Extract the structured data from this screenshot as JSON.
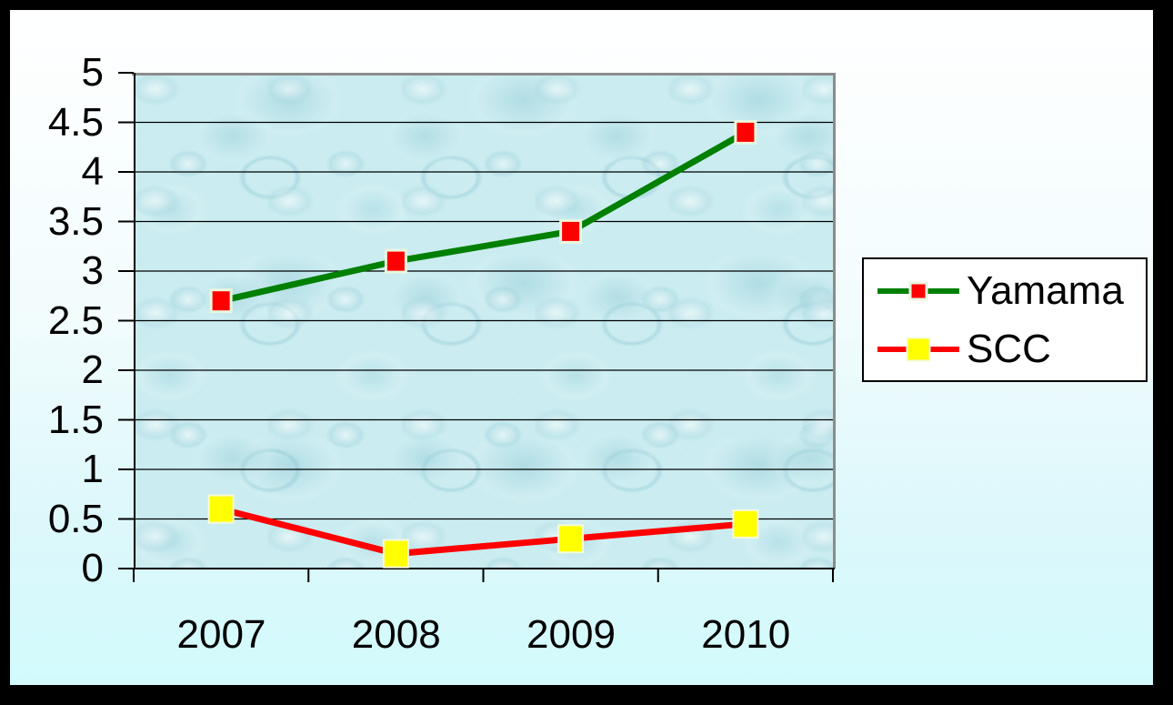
{
  "chart_data": {
    "type": "line",
    "title": "",
    "xlabel": "",
    "ylabel": "",
    "categories": [
      "2007",
      "2008",
      "2009",
      "2010"
    ],
    "series": [
      {
        "name": "Yamama",
        "values": [
          2.7,
          3.1,
          3.4,
          4.4
        ],
        "line_color": "#008000",
        "marker_color": "#ff0000",
        "marker_outline": "#e9f7de",
        "marker_shape": "square"
      },
      {
        "name": "SCC",
        "values": [
          0.6,
          0.15,
          0.3,
          0.45
        ],
        "line_color": "#ff0000",
        "marker_color": "#ffff00",
        "marker_outline": "#f6fbd8",
        "marker_shape": "square"
      }
    ],
    "ylim": [
      0,
      5
    ],
    "ytick_step": 0.5,
    "ytick_labels": [
      "5",
      "4.5",
      "4",
      "3.5",
      "3",
      "2.5",
      "2",
      "1.5",
      "1",
      "0.5",
      "0"
    ],
    "grid": "horizontal",
    "grid_color": "#000000",
    "legend_position": "right-middle",
    "colors": {
      "background_top": "#ffffff",
      "background_bottom": "#d2fafc",
      "plot_fill_base": "#cbedf1",
      "plot_border_top_right": "#8c8c8c",
      "axis": "#000000",
      "outer_frame": "#000000",
      "legend_background": "#ffffff"
    }
  }
}
